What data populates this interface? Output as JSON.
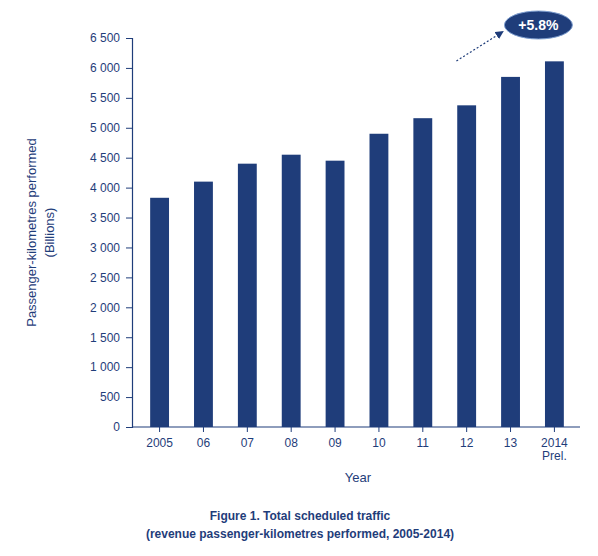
{
  "chart_data": {
    "type": "bar",
    "title": "Figure 1. Total scheduled traffic",
    "subtitle": "(revenue passenger-kilometres performed, 2005-2014)",
    "x_label": "Year",
    "y_label": [
      "Passenger-kilometres performed",
      "(Billions)"
    ],
    "categories": [
      "2005",
      "06",
      "07",
      "08",
      "09",
      "10",
      "11",
      "12",
      "13",
      "2014 Prel."
    ],
    "values": [
      3830,
      4100,
      4400,
      4550,
      4450,
      4900,
      5160,
      5375,
      5850,
      6110
    ],
    "color": "#1f3d7a",
    "ylim": [
      0,
      6500
    ],
    "yticks": [
      0,
      500,
      {
        "value": 1000,
        "label": "1 000"
      },
      {
        "value": 1500,
        "label": "1 500"
      },
      {
        "value": 2000,
        "label": "2 000"
      },
      {
        "value": 2500,
        "label": "2 500"
      },
      {
        "value": 3000,
        "label": "3 000"
      },
      {
        "value": 3500,
        "label": "3 500"
      },
      {
        "value": 4000,
        "label": "4 000"
      },
      {
        "value": 4500,
        "label": "4 500"
      },
      {
        "value": 5000,
        "label": "5 000"
      },
      {
        "value": 5500,
        "label": "5 500"
      },
      {
        "value": 6000,
        "label": "6 000"
      },
      {
        "value": 6500,
        "label": "6 500"
      }
    ],
    "annotations": [
      {
        "text": "+5.8%"
      }
    ]
  }
}
